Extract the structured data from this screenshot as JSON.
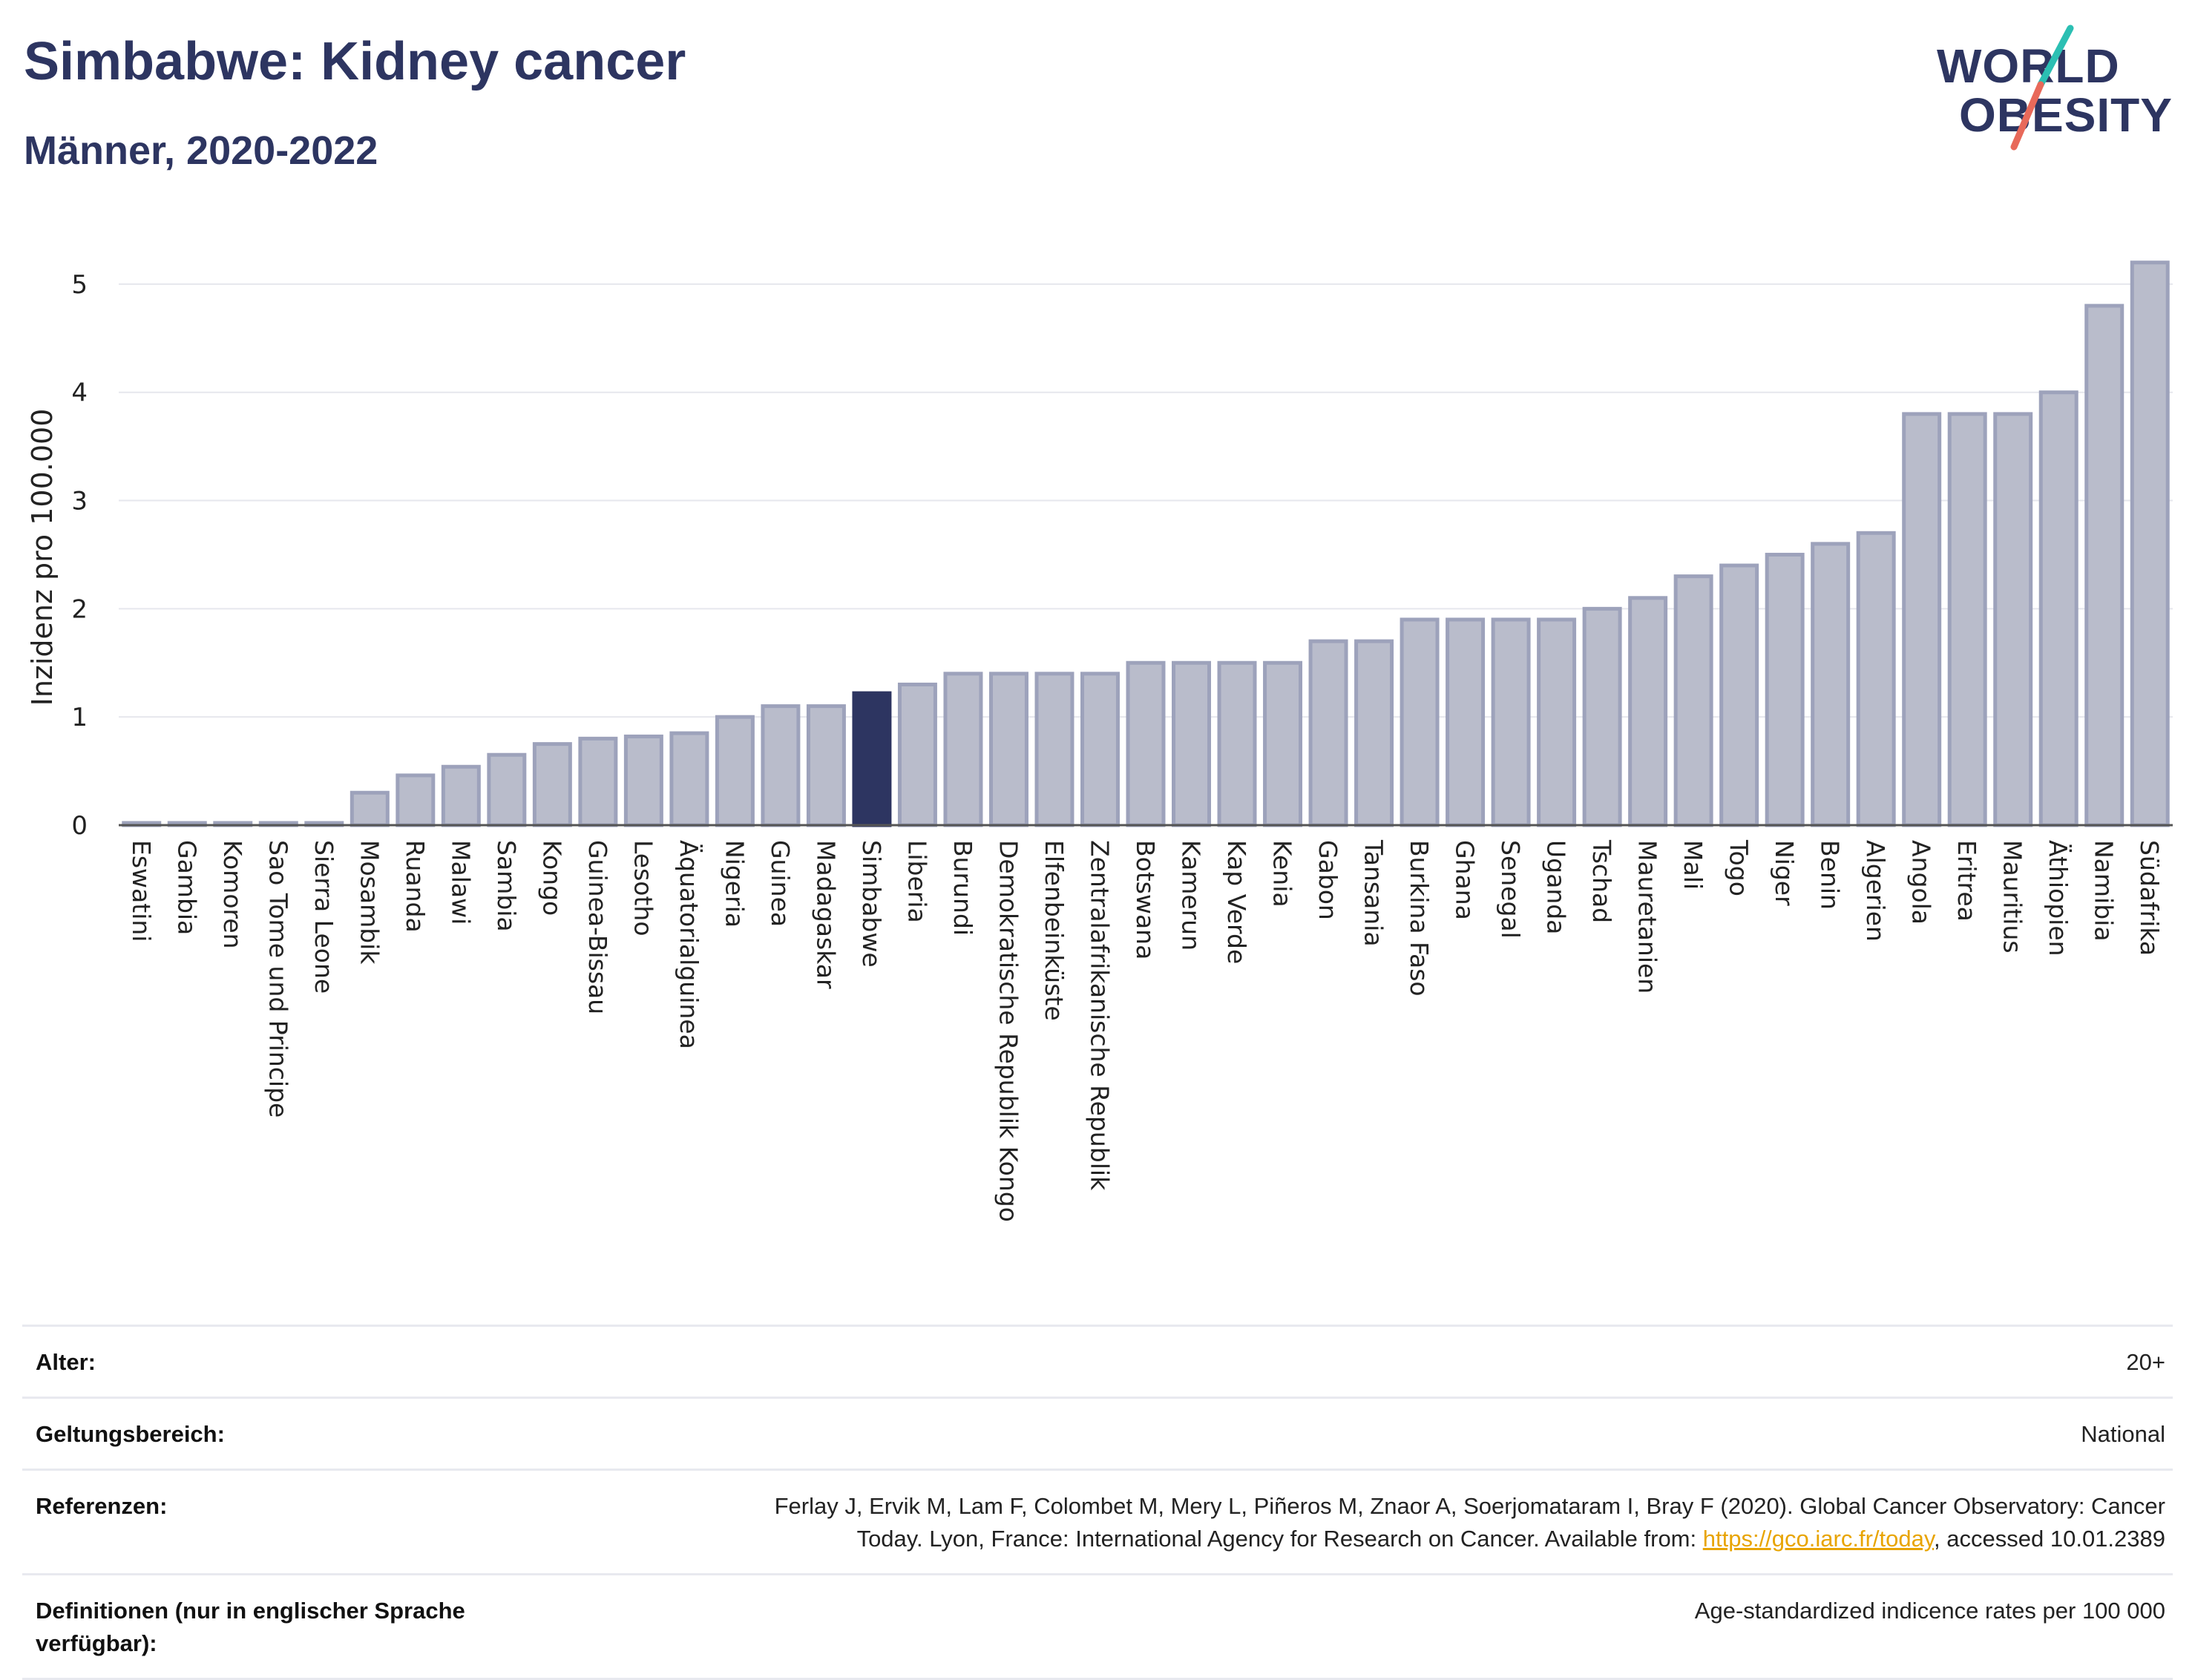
{
  "header": {
    "title": "Simbabwe: Kidney cancer",
    "subtitle": "Männer, 2020-2022",
    "logo_line1": "WORLD",
    "logo_line2": "OBESITY"
  },
  "colors": {
    "title": "#2d3561",
    "bar": "#b9bccb",
    "bar_border": "#9da2bb",
    "highlight": "#2d3561",
    "grid": "#e6e7ed",
    "logo_slash_top": "#2bbfb3",
    "logo_slash_bottom": "#e8695a",
    "link": "#e8a400"
  },
  "chart_data": {
    "type": "bar",
    "title": "Simbabwe: Kidney cancer",
    "subtitle": "Männer, 2020-2022",
    "xlabel": "",
    "ylabel": "Inzidenz pro 100.000",
    "ylim": [
      0,
      5.5
    ],
    "yticks": [
      0,
      1,
      2,
      3,
      4,
      5
    ],
    "grid": true,
    "highlight": "Simbabwe",
    "categories": [
      "Eswatini",
      "Gambia",
      "Komoren",
      "Sao Tome und Principe",
      "Sierra Leone",
      "Mosambik",
      "Ruanda",
      "Malawi",
      "Sambia",
      "Kongo",
      "Guinea-Bissau",
      "Lesotho",
      "Äquatorialguinea",
      "Nigeria",
      "Guinea",
      "Madagaskar",
      "Simbabwe",
      "Liberia",
      "Burundi",
      "Demokratische Republik Kongo",
      "Elfenbeinküste",
      "Zentralafrikanische Republik",
      "Botswana",
      "Kamerun",
      "Kap Verde",
      "Kenia",
      "Gabon",
      "Tansania",
      "Burkina Faso",
      "Ghana",
      "Senegal",
      "Uganda",
      "Tschad",
      "Mauretanien",
      "Mali",
      "Togo",
      "Niger",
      "Benin",
      "Algerien",
      "Angola",
      "Eritrea",
      "Mauritius",
      "Äthiopien",
      "Namibia",
      "Südafrika"
    ],
    "values": [
      0.0,
      0.0,
      0.0,
      0.0,
      0.0,
      0.3,
      0.46,
      0.54,
      0.65,
      0.75,
      0.8,
      0.82,
      0.85,
      1.0,
      1.1,
      1.1,
      1.22,
      1.3,
      1.4,
      1.4,
      1.4,
      1.4,
      1.5,
      1.5,
      1.5,
      1.5,
      1.7,
      1.7,
      1.9,
      1.9,
      1.9,
      1.9,
      2.0,
      2.1,
      2.3,
      2.4,
      2.5,
      2.6,
      2.7,
      3.8,
      3.8,
      3.8,
      4.0,
      4.8,
      5.2
    ]
  },
  "meta": {
    "rows": [
      {
        "key": "Alter:",
        "value": "20+"
      },
      {
        "key": "Geltungsbereich:",
        "value": "National"
      },
      {
        "key": "Referenzen:",
        "value_line1": "Ferlay J, Ervik M, Lam F, Colombet M, Mery L, Piñeros M, Znaor A, Soerjomataram I, Bray F (2020). Global Cancer Observatory: Cancer",
        "value_pre": "Today. Lyon, France: International Agency for Research on Cancer. Available from: ",
        "link": "https://gco.iarc.fr/today",
        "value_post": ", accessed 10.01.2389"
      },
      {
        "key": "Definitionen (nur in englischer Sprache verfügbar):",
        "value": "Age-standardized indicence rates per 100 000"
      }
    ]
  }
}
